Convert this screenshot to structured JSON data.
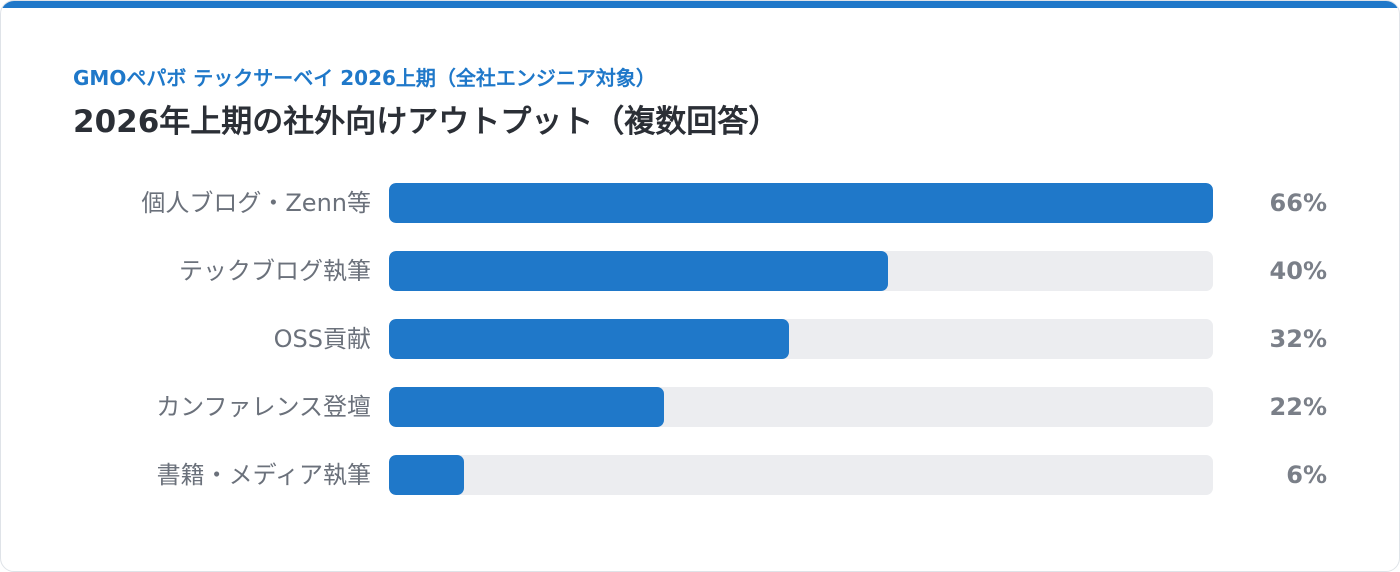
{
  "header": {
    "subtitle": "GMOペパボ テックサーベイ 2026上期（全社エンジニア対象）",
    "title": "2026年上期の社外向けアウトプット（複数回答）"
  },
  "colors": {
    "accent": "#1f78c9",
    "track": "#ecedf0",
    "label": "#6b717b",
    "value": "#7a7f88"
  },
  "chart_data": {
    "type": "bar",
    "orientation": "horizontal",
    "title": "2026年上期の社外向けアウトプット（複数回答）",
    "subtitle": "GMOペパボ テックサーベイ 2026上期（全社エンジニア対象）",
    "categories": [
      "個人ブログ・Zenn等",
      "テックブログ執筆",
      "OSS貢献",
      "カンファレンス登壇",
      "書籍・メディア執筆"
    ],
    "values": [
      66,
      40,
      32,
      22,
      6
    ],
    "value_labels": [
      "66%",
      "40%",
      "32%",
      "22%",
      "6%"
    ],
    "xlim": [
      0,
      66
    ],
    "grid": false,
    "legend": "none"
  }
}
